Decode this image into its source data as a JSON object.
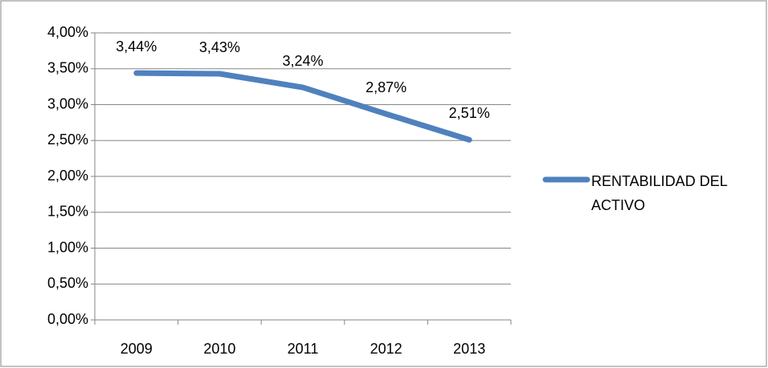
{
  "chart_data": {
    "type": "line",
    "categories": [
      "2009",
      "2010",
      "2011",
      "2012",
      "2013"
    ],
    "series": [
      {
        "name": "RENTABILIDAD DEL ACTIVO",
        "color": "#4f81bd",
        "values": [
          3.44,
          3.43,
          3.24,
          2.87,
          2.51
        ],
        "value_labels": [
          "3,44%",
          "3,43%",
          "3,24%",
          "2,87%",
          "2,51%"
        ]
      }
    ],
    "ylim": [
      0,
      4
    ],
    "yticks": [
      {
        "value": 0,
        "label": "0,00%"
      },
      {
        "value": 0.5,
        "label": "0,50%"
      },
      {
        "value": 1,
        "label": "1,00%"
      },
      {
        "value": 1.5,
        "label": "1,50%"
      },
      {
        "value": 2,
        "label": "2,00%"
      },
      {
        "value": 2.5,
        "label": "2,50%"
      },
      {
        "value": 3,
        "label": "3,00%"
      },
      {
        "value": 3.5,
        "label": "3,50%"
      },
      {
        "value": 4,
        "label": "4,00%"
      }
    ],
    "grid": true,
    "legend": "right"
  }
}
